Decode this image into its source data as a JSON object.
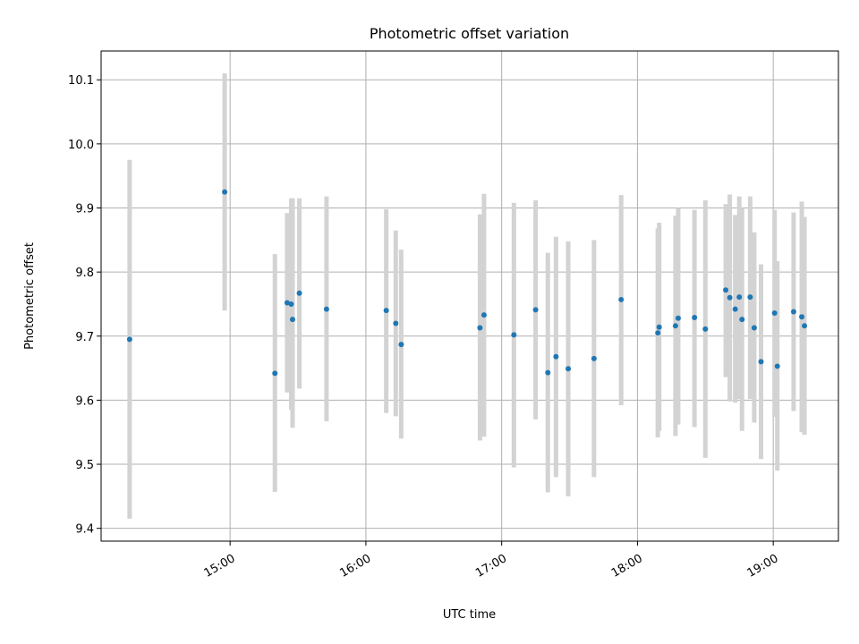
{
  "chart_data": {
    "type": "scatter",
    "title": "Photometric offset variation",
    "xlabel": "UTC time",
    "ylabel": "Photometric offset",
    "x_unit": "hours (UTC)",
    "xlim": [
      14.05,
      19.48
    ],
    "ylim": [
      9.38,
      10.145
    ],
    "x_ticks": [
      15,
      16,
      17,
      18,
      19
    ],
    "x_tick_labels": [
      "15:00",
      "16:00",
      "17:00",
      "18:00",
      "19:00"
    ],
    "y_ticks": [
      9.4,
      9.5,
      9.6,
      9.7,
      9.8,
      9.9,
      10.0,
      10.1
    ],
    "y_tick_labels": [
      "9.4",
      "9.5",
      "9.6",
      "9.7",
      "9.8",
      "9.9",
      "10.0",
      "10.1"
    ],
    "grid": true,
    "colors": {
      "point": "#1f77b4",
      "errorbar": "#d3d3d3",
      "grid": "#b0b0b0"
    },
    "series": [
      {
        "points": [
          {
            "x": 14.26,
            "y": 9.695,
            "lo": 9.415,
            "hi": 9.975
          },
          {
            "x": 14.96,
            "y": 9.925,
            "lo": 9.74,
            "hi": 10.11
          },
          {
            "x": 15.33,
            "y": 9.642,
            "lo": 9.457,
            "hi": 9.828
          },
          {
            "x": 15.42,
            "y": 9.752,
            "lo": 9.612,
            "hi": 9.892
          },
          {
            "x": 15.45,
            "y": 9.75,
            "lo": 9.585,
            "hi": 9.915
          },
          {
            "x": 15.46,
            "y": 9.726,
            "lo": 9.557,
            "hi": 9.915
          },
          {
            "x": 15.51,
            "y": 9.767,
            "lo": 9.618,
            "hi": 9.915
          },
          {
            "x": 15.71,
            "y": 9.742,
            "lo": 9.567,
            "hi": 9.918
          },
          {
            "x": 16.15,
            "y": 9.74,
            "lo": 9.58,
            "hi": 9.898
          },
          {
            "x": 16.22,
            "y": 9.72,
            "lo": 9.575,
            "hi": 9.865
          },
          {
            "x": 16.26,
            "y": 9.687,
            "lo": 9.54,
            "hi": 9.835
          },
          {
            "x": 16.84,
            "y": 9.713,
            "lo": 9.537,
            "hi": 9.89
          },
          {
            "x": 16.87,
            "y": 9.733,
            "lo": 9.543,
            "hi": 9.922
          },
          {
            "x": 17.09,
            "y": 9.702,
            "lo": 9.495,
            "hi": 9.908
          },
          {
            "x": 17.25,
            "y": 9.741,
            "lo": 9.57,
            "hi": 9.912
          },
          {
            "x": 17.34,
            "y": 9.643,
            "lo": 9.456,
            "hi": 9.83
          },
          {
            "x": 17.4,
            "y": 9.668,
            "lo": 9.48,
            "hi": 9.855
          },
          {
            "x": 17.49,
            "y": 9.649,
            "lo": 9.45,
            "hi": 9.848
          },
          {
            "x": 17.68,
            "y": 9.665,
            "lo": 9.48,
            "hi": 9.85
          },
          {
            "x": 17.88,
            "y": 9.757,
            "lo": 9.592,
            "hi": 9.92
          },
          {
            "x": 18.15,
            "y": 9.705,
            "lo": 9.542,
            "hi": 9.868
          },
          {
            "x": 18.16,
            "y": 9.714,
            "lo": 9.552,
            "hi": 9.877
          },
          {
            "x": 18.28,
            "y": 9.716,
            "lo": 9.544,
            "hi": 9.888
          },
          {
            "x": 18.3,
            "y": 9.728,
            "lo": 9.562,
            "hi": 9.9
          },
          {
            "x": 18.42,
            "y": 9.729,
            "lo": 9.558,
            "hi": 9.897
          },
          {
            "x": 18.5,
            "y": 9.711,
            "lo": 9.51,
            "hi": 9.912
          },
          {
            "x": 18.65,
            "y": 9.772,
            "lo": 9.636,
            "hi": 9.906
          },
          {
            "x": 18.68,
            "y": 9.76,
            "lo": 9.598,
            "hi": 9.921
          },
          {
            "x": 18.72,
            "y": 9.742,
            "lo": 9.596,
            "hi": 9.889
          },
          {
            "x": 18.75,
            "y": 9.761,
            "lo": 9.602,
            "hi": 9.918
          },
          {
            "x": 18.77,
            "y": 9.726,
            "lo": 9.552,
            "hi": 9.9
          },
          {
            "x": 18.83,
            "y": 9.761,
            "lo": 9.602,
            "hi": 9.918
          },
          {
            "x": 18.86,
            "y": 9.713,
            "lo": 9.565,
            "hi": 9.862
          },
          {
            "x": 18.91,
            "y": 9.66,
            "lo": 9.508,
            "hi": 9.812
          },
          {
            "x": 19.01,
            "y": 9.736,
            "lo": 9.574,
            "hi": 9.897
          },
          {
            "x": 19.03,
            "y": 9.653,
            "lo": 9.49,
            "hi": 9.817
          },
          {
            "x": 19.15,
            "y": 9.738,
            "lo": 9.583,
            "hi": 9.893
          },
          {
            "x": 19.21,
            "y": 9.73,
            "lo": 9.55,
            "hi": 9.91
          },
          {
            "x": 19.23,
            "y": 9.716,
            "lo": 9.546,
            "hi": 9.886
          }
        ]
      }
    ]
  }
}
